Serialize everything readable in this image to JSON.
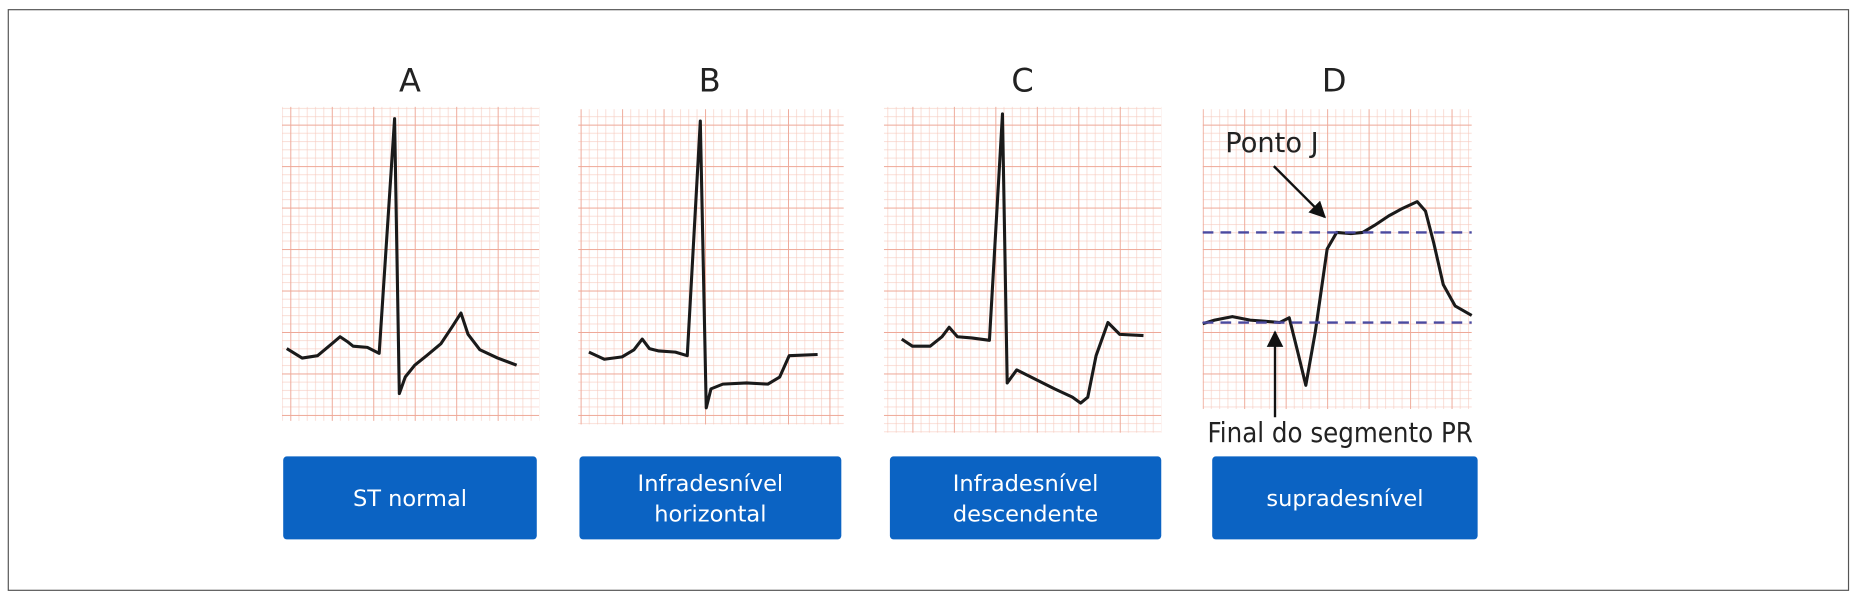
{
  "panels": [
    {
      "label": "A",
      "caption": [
        "ST normal"
      ]
    },
    {
      "label": "B",
      "caption": [
        "Infradesnível",
        "horizontal"
      ]
    },
    {
      "label": "C",
      "caption": [
        "Infradesnível",
        "descendente"
      ]
    },
    {
      "label": "D",
      "caption": [
        "supradesnível"
      ]
    }
  ],
  "annotations": {
    "j_point": "Ponto J",
    "pr_end": "Final do segmento PR"
  }
}
